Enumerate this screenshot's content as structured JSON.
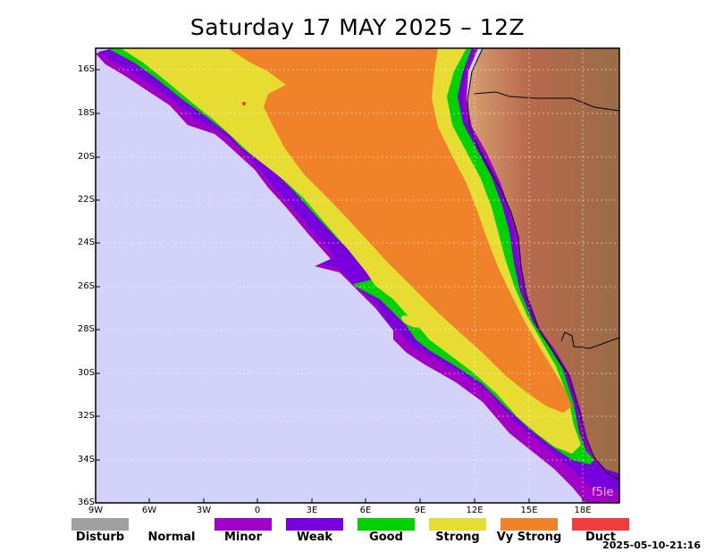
{
  "title": "Saturday 17 MAY 2025 – 12Z",
  "timestamp": "2025-05-10-21:16",
  "watermark": "f5le",
  "lat_labels": [
    "16S",
    "18S",
    "20S",
    "22S",
    "24S",
    "26S",
    "28S",
    "30S",
    "32S",
    "34S",
    "36S"
  ],
  "lon_labels": [
    "9W",
    "6W",
    "3W",
    "0",
    "3E",
    "6E",
    "9E",
    "12E",
    "15E",
    "18E"
  ],
  "legend": [
    {
      "label": "Disturb",
      "color": "#a0a0a0"
    },
    {
      "label": "Normal",
      "color": "#ffffff"
    },
    {
      "label": "Minor",
      "color": "#a000c8"
    },
    {
      "label": "Weak",
      "color": "#7800dc"
    },
    {
      "label": "Good",
      "color": "#00d200"
    },
    {
      "label": "Strong",
      "color": "#e6dc32"
    },
    {
      "label": "Vy Strong",
      "color": "#f0822a"
    },
    {
      "label": "Duct",
      "color": "#f03c3c"
    }
  ],
  "colors": {
    "ocean": "#d2d2fa",
    "land": "#a86848",
    "frame": "#000000"
  }
}
